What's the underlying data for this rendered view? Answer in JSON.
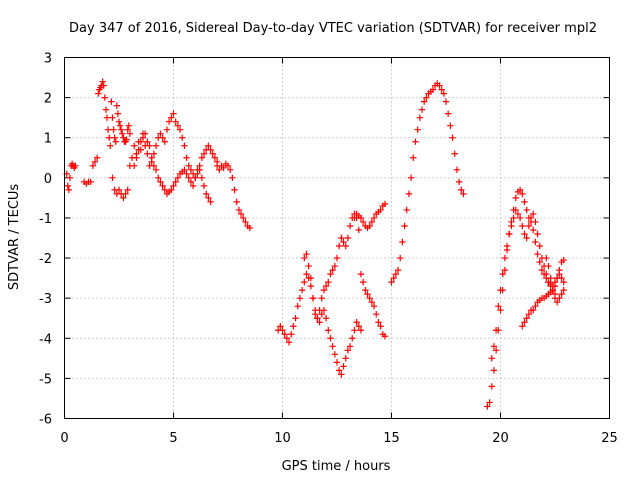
{
  "chart_data": {
    "type": "scatter",
    "title": "Day 347 of 2016, Sidereal Day-to-day VTEC variation (SDTVAR) for receiver mpl2",
    "xlabel": "GPS time / hours",
    "ylabel": "SDTVAR / TECUs",
    "xlim": [
      0,
      25
    ],
    "ylim": [
      -6,
      3
    ],
    "x_ticks": [
      "0",
      "5",
      "10",
      "15",
      "20",
      "25"
    ],
    "y_ticks": [
      "-6",
      "-5",
      "-4",
      "-3",
      "-2",
      "-1",
      "0",
      "1",
      "2",
      "3"
    ],
    "grid": true,
    "marker": "+",
    "color": "#ff0000",
    "series": [
      {
        "x": [
          0.1,
          0.15,
          0.2,
          0.25,
          0.3,
          0.35,
          0.4,
          0.45,
          0.5
        ],
        "y": [
          0.1,
          -0.2,
          -0.3,
          0.0,
          0.3,
          0.35,
          0.3,
          0.25,
          0.3
        ]
      },
      {
        "x": [
          0.9,
          1.0,
          1.1,
          1.2,
          1.3,
          1.4,
          1.5,
          1.55,
          1.6,
          1.65,
          1.7,
          1.75,
          1.8,
          1.85,
          1.9,
          1.95,
          2.0,
          2.05,
          2.1,
          2.15,
          2.2,
          2.25,
          2.3,
          2.35,
          2.4,
          2.45,
          2.5,
          2.55,
          2.6,
          2.65,
          2.7,
          2.75,
          2.8,
          2.85,
          2.9,
          2.95,
          3.0
        ],
        "y": [
          -0.1,
          -0.15,
          -0.1,
          -0.1,
          0.3,
          0.4,
          0.5,
          2.1,
          2.2,
          2.25,
          2.3,
          2.4,
          2.3,
          2.0,
          1.7,
          1.5,
          1.2,
          1.0,
          0.8,
          1.9,
          1.5,
          1.2,
          1.0,
          0.9,
          1.8,
          1.6,
          1.4,
          1.3,
          1.2,
          1.1,
          1.0,
          0.9,
          0.9,
          0.95,
          1.2,
          1.3,
          1.1
        ]
      },
      {
        "x": [
          2.2,
          2.3,
          2.4,
          2.5,
          2.6,
          2.7,
          2.8,
          2.9,
          3.0,
          3.1,
          3.2,
          3.3,
          3.4,
          3.5,
          3.6,
          3.7,
          3.8,
          3.9,
          4.0,
          4.1,
          4.2,
          4.3,
          4.4,
          4.5,
          4.6,
          4.7,
          4.8,
          4.9,
          5.0,
          5.1,
          5.2,
          5.3,
          5.4,
          5.5,
          5.6,
          5.7,
          5.8,
          5.9,
          6.0,
          6.1,
          6.2,
          6.3,
          6.4,
          6.5,
          6.6,
          6.7,
          6.8,
          6.9,
          7.0
        ],
        "y": [
          0.0,
          -0.3,
          -0.4,
          -0.3,
          -0.4,
          -0.5,
          -0.4,
          -0.3,
          0.3,
          0.5,
          0.8,
          0.6,
          0.9,
          0.7,
          1.0,
          1.1,
          0.9,
          0.8,
          0.5,
          0.3,
          0.2,
          0.0,
          -0.1,
          -0.2,
          -0.3,
          -0.4,
          -0.35,
          -0.3,
          -0.2,
          -0.1,
          0.0,
          0.1,
          0.15,
          0.2,
          0.1,
          0.0,
          -0.1,
          -0.2,
          0.0,
          0.2,
          0.3,
          0.5,
          0.6,
          0.7,
          0.8,
          0.7,
          0.6,
          0.5,
          0.4
        ]
      },
      {
        "x": [
          3.2,
          3.3,
          3.4,
          3.5,
          3.6,
          3.7,
          3.8,
          3.9,
          4.0,
          4.1,
          4.2,
          4.3,
          4.4,
          4.5,
          4.6,
          4.7,
          4.8,
          4.9,
          5.0,
          5.1,
          5.2,
          5.3,
          5.4,
          5.5,
          5.6,
          5.7,
          5.8,
          5.9,
          6.0,
          6.1,
          6.2,
          6.3,
          6.4,
          6.5,
          6.6,
          6.7
        ],
        "y": [
          0.3,
          0.5,
          0.7,
          0.9,
          1.1,
          0.8,
          0.6,
          0.3,
          0.4,
          0.6,
          0.8,
          1.0,
          1.1,
          1.0,
          0.9,
          1.2,
          1.4,
          1.5,
          1.6,
          1.4,
          1.3,
          1.2,
          1.0,
          0.8,
          0.5,
          0.3,
          0.2,
          0.1,
          0.0,
          0.1,
          0.2,
          0.0,
          -0.2,
          -0.4,
          -0.5,
          -0.6
        ]
      },
      {
        "x": [
          7.0,
          7.1,
          7.2,
          7.3,
          7.4,
          7.5,
          7.6,
          7.7,
          7.8,
          7.9,
          8.0,
          8.1,
          8.2,
          8.3,
          8.4,
          8.5
        ],
        "y": [
          0.3,
          0.2,
          0.3,
          0.25,
          0.35,
          0.3,
          0.2,
          0.0,
          -0.3,
          -0.6,
          -0.8,
          -0.9,
          -1.0,
          -1.1,
          -1.2,
          -1.25
        ]
      },
      {
        "x": [
          9.8,
          9.9,
          10.0,
          10.1,
          10.2,
          10.3,
          10.4,
          10.5,
          10.6,
          10.7,
          10.8,
          10.9,
          11.0,
          11.1,
          11.2,
          11.3,
          11.4,
          11.5,
          11.6,
          11.7,
          11.8,
          11.9,
          12.0,
          12.1,
          12.2,
          12.3,
          12.4,
          12.5,
          12.6,
          12.7,
          12.8,
          12.9,
          13.0,
          13.1,
          13.2,
          13.3,
          13.4,
          13.5,
          13.6
        ],
        "y": [
          -3.8,
          -3.7,
          -3.8,
          -3.9,
          -4.0,
          -4.1,
          -3.9,
          -3.7,
          -3.5,
          -3.2,
          -3.0,
          -2.8,
          -2.6,
          -2.4,
          -2.5,
          -2.7,
          -3.0,
          -3.3,
          -3.5,
          -3.6,
          -3.4,
          -3.3,
          -3.5,
          -3.8,
          -4.0,
          -4.2,
          -4.4,
          -4.6,
          -4.8,
          -4.9,
          -4.7,
          -4.5,
          -4.3,
          -4.2,
          -4.0,
          -3.8,
          -3.6,
          -3.7,
          -3.8
        ]
      },
      {
        "x": [
          11.0,
          11.1,
          11.2,
          11.3,
          11.4,
          11.5,
          11.6,
          11.7,
          11.8,
          11.9,
          12.0,
          12.1,
          12.2,
          12.3,
          12.4,
          12.5,
          12.6,
          12.7,
          12.8,
          12.9,
          13.0,
          13.1,
          13.2,
          13.3,
          13.4,
          13.5,
          13.6,
          13.7,
          13.8,
          13.9,
          14.0,
          14.1,
          14.2,
          14.3,
          14.4,
          14.5,
          14.6,
          14.7
        ],
        "y": [
          -2.0,
          -1.9,
          -2.2,
          -2.5,
          -3.0,
          -3.4,
          -3.5,
          -3.3,
          -3.0,
          -2.8,
          -2.7,
          -2.6,
          -2.4,
          -2.3,
          -2.2,
          -2.0,
          -1.7,
          -1.5,
          -1.6,
          -1.7,
          -1.5,
          -1.2,
          -1.0,
          -0.9,
          -1.0,
          -1.3,
          -2.4,
          -2.6,
          -2.8,
          -2.9,
          -3.0,
          -3.1,
          -3.2,
          -3.4,
          -3.6,
          -3.7,
          -3.9,
          -3.95
        ]
      },
      {
        "x": [
          13.3,
          13.4,
          13.5,
          13.6,
          13.7,
          13.8,
          13.9,
          14.0,
          14.1,
          14.2,
          14.3,
          14.4,
          14.5,
          14.6,
          14.7
        ],
        "y": [
          -1.0,
          -0.9,
          -0.95,
          -1.0,
          -1.1,
          -1.2,
          -1.25,
          -1.2,
          -1.1,
          -1.0,
          -0.9,
          -0.85,
          -0.8,
          -0.7,
          -0.65
        ]
      },
      {
        "x": [
          15.0,
          15.1,
          15.2,
          15.3,
          15.4,
          15.5,
          15.6,
          15.7,
          15.8,
          15.9,
          16.0,
          16.1,
          16.2,
          16.3,
          16.4,
          16.5,
          16.6,
          16.7,
          16.8,
          16.9,
          17.0,
          17.1,
          17.2,
          17.3,
          17.4,
          17.5,
          17.6,
          17.7,
          17.8,
          17.9,
          18.0,
          18.1,
          18.2,
          18.3
        ],
        "y": [
          -2.6,
          -2.5,
          -2.4,
          -2.3,
          -2.0,
          -1.6,
          -1.2,
          -0.8,
          -0.4,
          0.0,
          0.5,
          0.9,
          1.2,
          1.5,
          1.7,
          1.9,
          2.0,
          2.1,
          2.15,
          2.2,
          2.3,
          2.35,
          2.3,
          2.2,
          2.1,
          1.9,
          1.6,
          1.3,
          1.0,
          0.6,
          0.2,
          -0.1,
          -0.3,
          -0.4
        ]
      },
      {
        "x": [
          19.4,
          19.5,
          19.6,
          19.7,
          19.8,
          19.9,
          20.0,
          20.1,
          20.2,
          20.3,
          20.4,
          20.5,
          20.6,
          20.7,
          20.8,
          20.9,
          21.0,
          21.1,
          21.2,
          21.3,
          21.4,
          21.5,
          21.6,
          21.7,
          21.8,
          21.9,
          22.0,
          22.1,
          22.2,
          22.3,
          22.4,
          22.5,
          22.6,
          22.7,
          22.8,
          22.9
        ],
        "y": [
          -5.7,
          -5.6,
          -5.2,
          -4.8,
          -4.3,
          -3.8,
          -3.3,
          -2.8,
          -2.3,
          -1.8,
          -1.4,
          -1.1,
          -0.8,
          -0.5,
          -0.35,
          -0.3,
          -0.4,
          -0.6,
          -0.8,
          -1.0,
          -1.1,
          -1.3,
          -1.6,
          -1.9,
          -2.1,
          -2.3,
          -2.4,
          -2.5,
          -2.6,
          -2.65,
          -2.7,
          -2.6,
          -2.5,
          -2.4,
          -2.5,
          -2.6
        ]
      },
      {
        "x": [
          19.6,
          19.7,
          19.8,
          19.9,
          20.0,
          20.1,
          20.2,
          20.3,
          20.4,
          20.5,
          20.6,
          20.7,
          20.8,
          20.9,
          21.0,
          21.1,
          21.2,
          21.3,
          21.4,
          21.5,
          21.6,
          21.7,
          21.8,
          21.9,
          22.0,
          22.1,
          22.2,
          22.3,
          22.4,
          22.5
        ],
        "y": [
          -4.5,
          -4.2,
          -3.8,
          -3.2,
          -2.8,
          -2.4,
          -2.0,
          -1.7,
          -1.4,
          -1.2,
          -1.0,
          -0.8,
          -0.9,
          -1.0,
          -1.2,
          -1.4,
          -1.5,
          -1.2,
          -1.0,
          -0.9,
          -1.1,
          -1.4,
          -1.7,
          -2.0,
          -2.2,
          -2.4,
          -2.6,
          -2.7,
          -2.8,
          -2.9
        ]
      },
      {
        "x": [
          21.0,
          21.1,
          21.2,
          21.3,
          21.4,
          21.5,
          21.6,
          21.7,
          21.8,
          21.9,
          22.0,
          22.1,
          22.2,
          22.3,
          22.4,
          22.5,
          22.6,
          22.7,
          22.8,
          22.9
        ],
        "y": [
          -3.7,
          -3.6,
          -3.5,
          -3.4,
          -3.3,
          -3.3,
          -3.2,
          -3.1,
          -3.05,
          -3.0,
          -3.0,
          -2.95,
          -2.9,
          -2.85,
          -2.8,
          -2.7,
          -2.5,
          -2.3,
          -2.1,
          -2.05
        ]
      },
      {
        "x": [
          22.1,
          22.2,
          22.3,
          22.4,
          22.5,
          22.6,
          22.7,
          22.8,
          22.9
        ],
        "y": [
          -2.0,
          -2.2,
          -2.5,
          -2.8,
          -3.0,
          -3.1,
          -3.0,
          -2.9,
          -2.8
        ]
      }
    ]
  }
}
